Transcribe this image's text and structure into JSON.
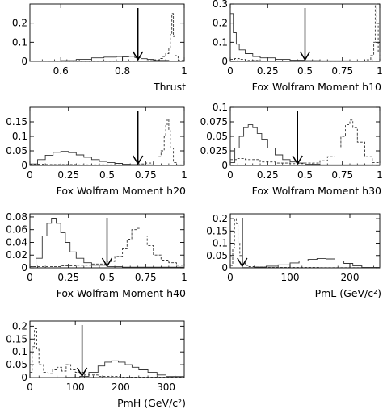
{
  "chart_data": [
    {
      "type": "line",
      "id": "thrust",
      "xlabel": "Thrust",
      "xlim": [
        0.5,
        1.0
      ],
      "ylim": [
        0,
        0.3
      ],
      "xticks": [
        "0.6",
        "0.8",
        "1"
      ],
      "xtick_values": [
        0.6,
        0.8,
        1.0
      ],
      "yticks": [
        "0",
        "0.1",
        "0.2"
      ],
      "ytick_values": [
        0,
        0.1,
        0.2
      ],
      "cut": 0.85,
      "series": [
        {
          "style": "solid",
          "x": [
            0.5,
            0.55,
            0.6,
            0.65,
            0.7,
            0.74,
            0.78,
            0.8,
            0.82,
            0.84,
            0.86,
            0.88,
            0.9,
            0.95,
            1.0
          ],
          "y": [
            0,
            0.001,
            0.004,
            0.01,
            0.018,
            0.022,
            0.025,
            0.023,
            0.026,
            0.02,
            0.014,
            0.01,
            0.005,
            0.001,
            0
          ]
        },
        {
          "style": "dashed",
          "x": [
            0.5,
            0.8,
            0.85,
            0.88,
            0.9,
            0.92,
            0.93,
            0.94,
            0.95,
            0.955,
            0.96,
            0.965,
            0.97,
            0.98,
            1.0
          ],
          "y": [
            0,
            0,
            0.002,
            0.004,
            0.008,
            0.015,
            0.025,
            0.04,
            0.07,
            0.14,
            0.25,
            0.13,
            0.03,
            0.005,
            0
          ]
        }
      ]
    },
    {
      "type": "line",
      "id": "h10",
      "xlabel": "Fox Wolfram Moment h10",
      "xlim": [
        0,
        1.0
      ],
      "ylim": [
        0,
        0.3
      ],
      "xticks": [
        "0",
        "0.25",
        "0.5",
        "0.75",
        "1"
      ],
      "xtick_values": [
        0,
        0.25,
        0.5,
        0.75,
        1.0
      ],
      "yticks": [
        "0",
        "0.1",
        "0.2",
        "0.3"
      ],
      "ytick_values": [
        0,
        0.1,
        0.2,
        0.3
      ],
      "cut": 0.5,
      "series": [
        {
          "style": "solid",
          "x": [
            0,
            0.02,
            0.04,
            0.06,
            0.1,
            0.15,
            0.2,
            0.3,
            0.4,
            0.5,
            0.6,
            0.8,
            1.0
          ],
          "y": [
            0.25,
            0.15,
            0.09,
            0.06,
            0.04,
            0.025,
            0.018,
            0.01,
            0.006,
            0.004,
            0.003,
            0.002,
            0.001
          ]
        },
        {
          "style": "dashed",
          "x": [
            0,
            0.03,
            0.06,
            0.1,
            0.2,
            0.4,
            0.6,
            0.8,
            0.9,
            0.94,
            0.96,
            0.97,
            0.98,
            0.99,
            1.0
          ],
          "y": [
            0.01,
            0.015,
            0.01,
            0.005,
            0.002,
            0.001,
            0.001,
            0.002,
            0.008,
            0.03,
            0.1,
            0.3,
            0.2,
            0.05,
            0
          ]
        }
      ]
    },
    {
      "type": "line",
      "id": "h20",
      "xlabel": "Fox Wolfram Moment h20",
      "xlim": [
        0,
        1.0
      ],
      "ylim": [
        0,
        0.2
      ],
      "xticks": [
        "0",
        "0.25",
        "0.5",
        "0.75",
        "1"
      ],
      "xtick_values": [
        0,
        0.25,
        0.5,
        0.75,
        1.0
      ],
      "yticks": [
        "0",
        "0.05",
        "0.1",
        "0.15"
      ],
      "ytick_values": [
        0,
        0.05,
        0.1,
        0.15
      ],
      "cut": 0.7,
      "series": [
        {
          "style": "solid",
          "x": [
            0,
            0.05,
            0.1,
            0.15,
            0.2,
            0.25,
            0.3,
            0.35,
            0.4,
            0.45,
            0.5,
            0.55,
            0.6,
            0.65,
            0.7,
            0.8,
            1.0
          ],
          "y": [
            0.005,
            0.02,
            0.035,
            0.045,
            0.048,
            0.044,
            0.036,
            0.028,
            0.02,
            0.014,
            0.01,
            0.007,
            0.004,
            0.003,
            0.002,
            0.001,
            0
          ]
        },
        {
          "style": "dashed",
          "x": [
            0,
            0.1,
            0.3,
            0.5,
            0.6,
            0.7,
            0.75,
            0.8,
            0.83,
            0.85,
            0.87,
            0.88,
            0.89,
            0.9,
            0.91,
            0.93,
            0.95,
            1.0
          ],
          "y": [
            0.004,
            0.003,
            0.002,
            0.002,
            0.003,
            0.005,
            0.008,
            0.015,
            0.03,
            0.05,
            0.1,
            0.14,
            0.16,
            0.12,
            0.06,
            0.01,
            0.002,
            0
          ]
        }
      ]
    },
    {
      "type": "line",
      "id": "h30",
      "xlabel": "Fox Wolfram Moment h30",
      "xlim": [
        0,
        1.0
      ],
      "ylim": [
        0,
        0.1
      ],
      "xticks": [
        "0",
        "0.25",
        "0.5",
        "0.75",
        "1"
      ],
      "xtick_values": [
        0,
        0.25,
        0.5,
        0.75,
        1.0
      ],
      "yticks": [
        "0",
        "0.025",
        "0.05",
        "0.075",
        "0.1"
      ],
      "ytick_values": [
        0,
        0.025,
        0.05,
        0.075,
        0.1
      ],
      "cut": 0.45,
      "series": [
        {
          "style": "solid",
          "x": [
            0,
            0.03,
            0.06,
            0.09,
            0.12,
            0.15,
            0.18,
            0.21,
            0.25,
            0.3,
            0.35,
            0.4,
            0.45,
            0.5,
            0.6,
            1.0
          ],
          "y": [
            0.005,
            0.03,
            0.05,
            0.065,
            0.07,
            0.065,
            0.055,
            0.045,
            0.03,
            0.018,
            0.01,
            0.006,
            0.004,
            0.002,
            0.001,
            0
          ]
        },
        {
          "style": "dashed",
          "x": [
            0,
            0.05,
            0.1,
            0.2,
            0.3,
            0.4,
            0.5,
            0.6,
            0.65,
            0.7,
            0.74,
            0.77,
            0.8,
            0.82,
            0.85,
            0.9,
            0.95,
            1.0
          ],
          "y": [
            0.01,
            0.012,
            0.01,
            0.006,
            0.004,
            0.003,
            0.004,
            0.008,
            0.015,
            0.03,
            0.05,
            0.07,
            0.078,
            0.065,
            0.04,
            0.015,
            0.005,
            0
          ]
        }
      ]
    },
    {
      "type": "line",
      "id": "h40",
      "xlabel": "Fox Wolfram Moment h40",
      "xlim": [
        0,
        1.0
      ],
      "ylim": [
        0,
        0.085
      ],
      "xticks": [
        "0",
        "0.25",
        "0.5",
        "0.75",
        "1"
      ],
      "xtick_values": [
        0,
        0.25,
        0.5,
        0.75,
        1.0
      ],
      "yticks": [
        "0",
        "0.02",
        "0.04",
        "0.06",
        "0.08"
      ],
      "ytick_values": [
        0,
        0.02,
        0.04,
        0.06,
        0.08
      ],
      "cut": 0.5,
      "series": [
        {
          "style": "solid",
          "x": [
            0,
            0.04,
            0.08,
            0.11,
            0.14,
            0.17,
            0.2,
            0.23,
            0.26,
            0.3,
            0.35,
            0.4,
            0.5,
            0.6,
            1.0
          ],
          "y": [
            0.002,
            0.015,
            0.05,
            0.07,
            0.078,
            0.07,
            0.055,
            0.04,
            0.025,
            0.015,
            0.008,
            0.004,
            0.002,
            0.001,
            0
          ]
        },
        {
          "style": "dashed",
          "x": [
            0,
            0.1,
            0.2,
            0.3,
            0.4,
            0.5,
            0.55,
            0.6,
            0.63,
            0.66,
            0.69,
            0.72,
            0.76,
            0.8,
            0.85,
            0.9,
            0.95,
            1.0
          ],
          "y": [
            0.002,
            0.002,
            0.003,
            0.004,
            0.006,
            0.01,
            0.018,
            0.03,
            0.045,
            0.06,
            0.062,
            0.05,
            0.035,
            0.02,
            0.012,
            0.008,
            0.004,
            0.001
          ]
        }
      ]
    },
    {
      "type": "line",
      "id": "pml",
      "xlabel": "PmL (GeV/c²)",
      "xlim": [
        0,
        250
      ],
      "ylim": [
        0,
        0.22
      ],
      "xticks": [
        "0",
        "100",
        "200"
      ],
      "xtick_values": [
        0,
        100,
        200
      ],
      "yticks": [
        "0",
        "0.05",
        "0.1",
        "0.15",
        "0.2"
      ],
      "ytick_values": [
        0,
        0.05,
        0.1,
        0.15,
        0.2
      ],
      "cut": 20,
      "series": [
        {
          "style": "solid",
          "x": [
            0,
            20,
            40,
            60,
            80,
            100,
            115,
            130,
            145,
            160,
            175,
            190,
            205,
            220,
            250
          ],
          "y": [
            0,
            0.001,
            0.003,
            0.007,
            0.012,
            0.02,
            0.028,
            0.034,
            0.038,
            0.036,
            0.028,
            0.018,
            0.008,
            0.002,
            0
          ]
        },
        {
          "style": "dashed",
          "x": [
            0,
            4,
            7,
            10,
            13,
            16,
            20,
            25,
            30,
            40,
            60,
            100,
            150,
            200,
            250
          ],
          "y": [
            0.01,
            0.08,
            0.2,
            0.18,
            0.1,
            0.05,
            0.02,
            0.01,
            0.005,
            0.003,
            0.002,
            0.002,
            0.001,
            0.001,
            0
          ]
        }
      ]
    },
    {
      "type": "line",
      "id": "pmh",
      "xlabel": "PmH (GeV/c²)",
      "xlim": [
        0,
        340
      ],
      "ylim": [
        0,
        0.22
      ],
      "xticks": [
        "0",
        "100",
        "200",
        "300"
      ],
      "xtick_values": [
        0,
        100,
        200,
        300
      ],
      "yticks": [
        "0",
        "0.05",
        "0.1",
        "0.15",
        "0.2"
      ],
      "ytick_values": [
        0,
        0.05,
        0.1,
        0.15,
        0.2
      ],
      "cut": 115,
      "series": [
        {
          "style": "solid",
          "x": [
            0,
            80,
            110,
            130,
            150,
            165,
            180,
            195,
            210,
            225,
            240,
            260,
            280,
            300,
            340
          ],
          "y": [
            0,
            0.001,
            0.005,
            0.02,
            0.045,
            0.06,
            0.065,
            0.06,
            0.05,
            0.04,
            0.03,
            0.02,
            0.01,
            0.004,
            0
          ]
        },
        {
          "style": "dashed",
          "x": [
            0,
            5,
            10,
            15,
            20,
            30,
            40,
            50,
            60,
            70,
            80,
            90,
            100,
            120,
            150,
            200,
            340
          ],
          "y": [
            0.02,
            0.12,
            0.19,
            0.11,
            0.05,
            0.02,
            0.015,
            0.03,
            0.04,
            0.025,
            0.05,
            0.03,
            0.02,
            0.01,
            0.005,
            0.002,
            0
          ]
        }
      ]
    }
  ]
}
